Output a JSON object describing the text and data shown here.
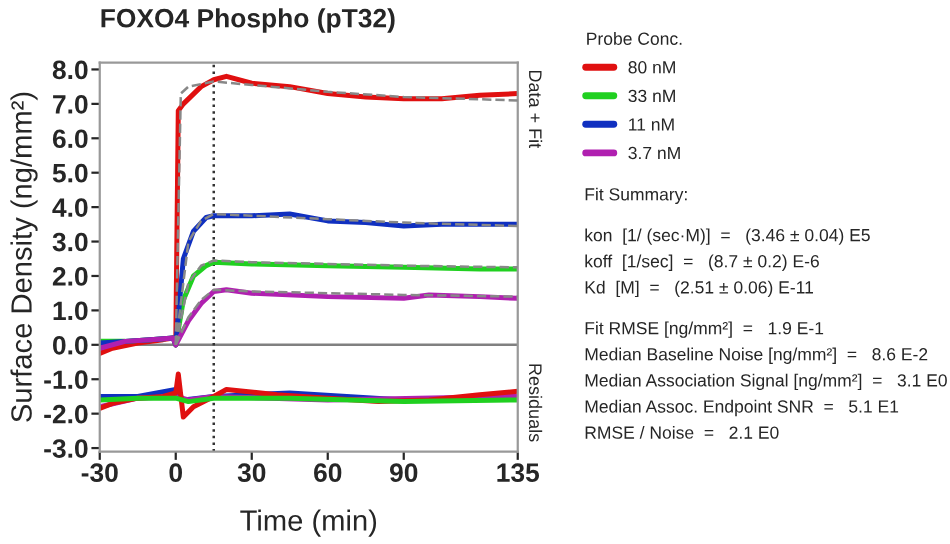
{
  "chart_data": {
    "type": "line",
    "title": "FOXO4 Phospho (pT32)",
    "xlabel": "Time (min)",
    "ylabel": "Surface Density (ng/mm²)",
    "legend_title": "Probe Conc.",
    "legend": "right",
    "grid": false,
    "line_style": "solid",
    "marker": "none",
    "xlim": [
      -30,
      135
    ],
    "ylim": [
      -3.1,
      8.2
    ],
    "xticks": [
      -30,
      0,
      30,
      60,
      90,
      135
    ],
    "yticks": [
      {
        "value": -3,
        "label": "-3.0"
      },
      {
        "value": -2,
        "label": "-2.0"
      },
      {
        "value": -1,
        "label": "-1.0"
      },
      {
        "value": 0,
        "label": "0.0"
      },
      {
        "value": 1,
        "label": "1.0"
      },
      {
        "value": 2,
        "label": "2.0"
      },
      {
        "value": 3,
        "label": "3.0"
      },
      {
        "value": 4,
        "label": "4.0"
      },
      {
        "value": 5,
        "label": "5.0"
      },
      {
        "value": 6,
        "label": "6.0"
      },
      {
        "value": 7,
        "label": "7.0"
      },
      {
        "value": 8,
        "label": "8.0"
      }
    ],
    "ref_lines": [
      {
        "axis": "y",
        "value": 0,
        "color": "#808080",
        "line_style": "solid"
      },
      {
        "axis": "x",
        "value": 15,
        "color": "#333333",
        "line_style": "dotted"
      }
    ],
    "series": [
      {
        "name": "80 nM",
        "color": "#e01010",
        "x": [
          -30,
          -25,
          -15,
          -5,
          -1,
          0,
          1,
          3,
          10,
          15,
          20,
          30,
          45,
          60,
          75,
          90,
          105,
          120,
          135
        ],
        "values": [
          -0.25,
          -0.1,
          0.05,
          0.15,
          0.2,
          0.0,
          6.8,
          7.0,
          7.5,
          7.7,
          7.8,
          7.6,
          7.5,
          7.3,
          7.2,
          7.15,
          7.15,
          7.25,
          7.3
        ]
      },
      {
        "name": "33 nM",
        "color": "#20d020",
        "x": [
          -30,
          -20,
          -10,
          -1,
          0,
          3,
          7,
          12,
          15,
          30,
          60,
          90,
          120,
          135
        ],
        "values": [
          0.1,
          0.1,
          0.15,
          0.2,
          0.0,
          1.3,
          2.0,
          2.3,
          2.4,
          2.35,
          2.3,
          2.25,
          2.2,
          2.2
        ]
      },
      {
        "name": "11 nM",
        "color": "#1030c0",
        "x": [
          -30,
          -20,
          -10,
          -1,
          0,
          3,
          7,
          12,
          15,
          30,
          45,
          60,
          75,
          90,
          105,
          120,
          135
        ],
        "values": [
          0.05,
          0.1,
          0.15,
          0.2,
          0.0,
          2.5,
          3.3,
          3.7,
          3.75,
          3.75,
          3.8,
          3.6,
          3.55,
          3.45,
          3.5,
          3.5,
          3.5
        ]
      },
      {
        "name": "3.7 nM",
        "color": "#b020b0",
        "x": [
          -30,
          -20,
          -10,
          -1,
          0,
          5,
          10,
          15,
          20,
          30,
          60,
          90,
          100,
          120,
          135
        ],
        "values": [
          -0.1,
          0.1,
          0.15,
          0.2,
          0.0,
          0.7,
          1.2,
          1.55,
          1.6,
          1.5,
          1.4,
          1.35,
          1.45,
          1.4,
          1.35
        ]
      },
      {
        "color": "#888888",
        "line_style": "dashed",
        "x": [
          0,
          2,
          5,
          15,
          30,
          60,
          90,
          135
        ],
        "values": [
          0.0,
          7.3,
          7.5,
          7.65,
          7.55,
          7.35,
          7.2,
          7.1
        ]
      },
      {
        "color": "#888888",
        "line_style": "dashed",
        "x": [
          0,
          5,
          10,
          15,
          30,
          60,
          90,
          135
        ],
        "values": [
          0.0,
          3.0,
          3.6,
          3.8,
          3.75,
          3.65,
          3.55,
          3.45
        ]
      },
      {
        "color": "#888888",
        "line_style": "dashed",
        "x": [
          0,
          5,
          10,
          15,
          30,
          60,
          90,
          135
        ],
        "values": [
          0.0,
          1.8,
          2.3,
          2.45,
          2.4,
          2.35,
          2.3,
          2.25
        ]
      },
      {
        "color": "#888888",
        "line_style": "dashed",
        "x": [
          0,
          5,
          10,
          15,
          30,
          60,
          90,
          135
        ],
        "values": [
          0.0,
          0.8,
          1.3,
          1.6,
          1.55,
          1.5,
          1.45,
          1.4
        ]
      },
      {
        "color": "#1030c0",
        "x": [
          -30,
          -15,
          0,
          3,
          15,
          45,
          90,
          135
        ],
        "values": [
          -1.5,
          -1.5,
          -1.3,
          -1.6,
          -1.5,
          -1.4,
          -1.6,
          -1.5
        ]
      },
      {
        "color": "#b020b0",
        "x": [
          -30,
          -15,
          0,
          5,
          15,
          60,
          135
        ],
        "values": [
          -1.8,
          -1.55,
          -1.5,
          -1.6,
          -1.5,
          -1.6,
          -1.5
        ]
      },
      {
        "color": "#e01010",
        "x": [
          -30,
          -25,
          -15,
          -5,
          0,
          1,
          3,
          7,
          15,
          20,
          40,
          60,
          80,
          100,
          120,
          135
        ],
        "values": [
          -1.85,
          -1.7,
          -1.55,
          -1.5,
          -1.4,
          -0.85,
          -2.1,
          -1.8,
          -1.5,
          -1.3,
          -1.45,
          -1.55,
          -1.65,
          -1.6,
          -1.45,
          -1.35
        ]
      },
      {
        "color": "#20d020",
        "x": [
          -30,
          -15,
          0,
          5,
          15,
          45,
          90,
          135
        ],
        "values": [
          -1.6,
          -1.55,
          -1.55,
          -1.65,
          -1.55,
          -1.55,
          -1.65,
          -1.6
        ]
      }
    ],
    "annotations": [
      "Data + Fit",
      "Residuals",
      "Fit Summary:",
      "kon  [1/ (sec·M)]  =   (3.46 ± 0.04) E5",
      "koff  [1/sec]  =   (8.7 ± 0.2) E-6",
      "Kd  [M]  =   (2.51 ± 0.06) E-11",
      "Fit RMSE [ng/mm²]  =   1.9 E-1",
      "Median Baseline Noise [ng/mm²]  =   8.6 E-2",
      "Median Association Signal [ng/mm²]  =   3.1 E0",
      "Median Assoc. Endpoint SNR  =   5.1 E1",
      "RMSE / Noise  =   2.1 E0"
    ]
  }
}
